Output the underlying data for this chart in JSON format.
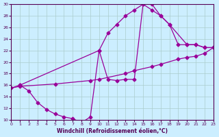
{
  "xlabel": "Windchill (Refroidissement éolien,°C)",
  "background_color": "#cceeff",
  "line_color": "#990099",
  "grid_color": "#aacccc",
  "xlim": [
    0,
    23
  ],
  "ylim": [
    10,
    30
  ],
  "xticks": [
    0,
    1,
    2,
    3,
    4,
    5,
    6,
    7,
    8,
    9,
    10,
    11,
    12,
    13,
    14,
    15,
    16,
    17,
    18,
    19,
    20,
    21,
    22,
    23
  ],
  "yticks": [
    10,
    12,
    14,
    16,
    18,
    20,
    22,
    24,
    26,
    28,
    30
  ],
  "curve1_x": [
    0,
    1,
    2,
    3,
    4,
    5,
    6,
    7,
    8,
    9,
    10,
    11,
    12,
    13,
    14,
    15,
    16,
    17,
    18,
    19,
    20,
    21,
    22,
    23
  ],
  "curve1_y": [
    15.5,
    16.0,
    15.0,
    13.0,
    11.8,
    11.0,
    10.5,
    10.2,
    9.5,
    10.5,
    22.0,
    17.0,
    16.8,
    17.0,
    17.0,
    30.0,
    30.0,
    28.0,
    26.5,
    23.0,
    23.0,
    23.0,
    22.5,
    22.5
  ],
  "curve2_x": [
    1,
    10,
    11,
    12,
    13,
    14,
    15,
    16,
    17,
    18,
    20,
    21,
    22,
    23
  ],
  "curve2_y": [
    16.0,
    22.0,
    25.0,
    26.5,
    28.0,
    29.0,
    30.0,
    29.0,
    28.0,
    26.5,
    23.0,
    23.0,
    22.5,
    22.5
  ],
  "curve3_x": [
    0,
    1,
    5,
    9,
    10,
    13,
    14,
    16,
    17,
    19,
    20,
    21,
    22,
    23
  ],
  "curve3_y": [
    15.5,
    15.8,
    16.2,
    16.8,
    17.0,
    18.0,
    18.5,
    19.2,
    19.6,
    20.5,
    20.8,
    21.0,
    21.5,
    22.5
  ]
}
